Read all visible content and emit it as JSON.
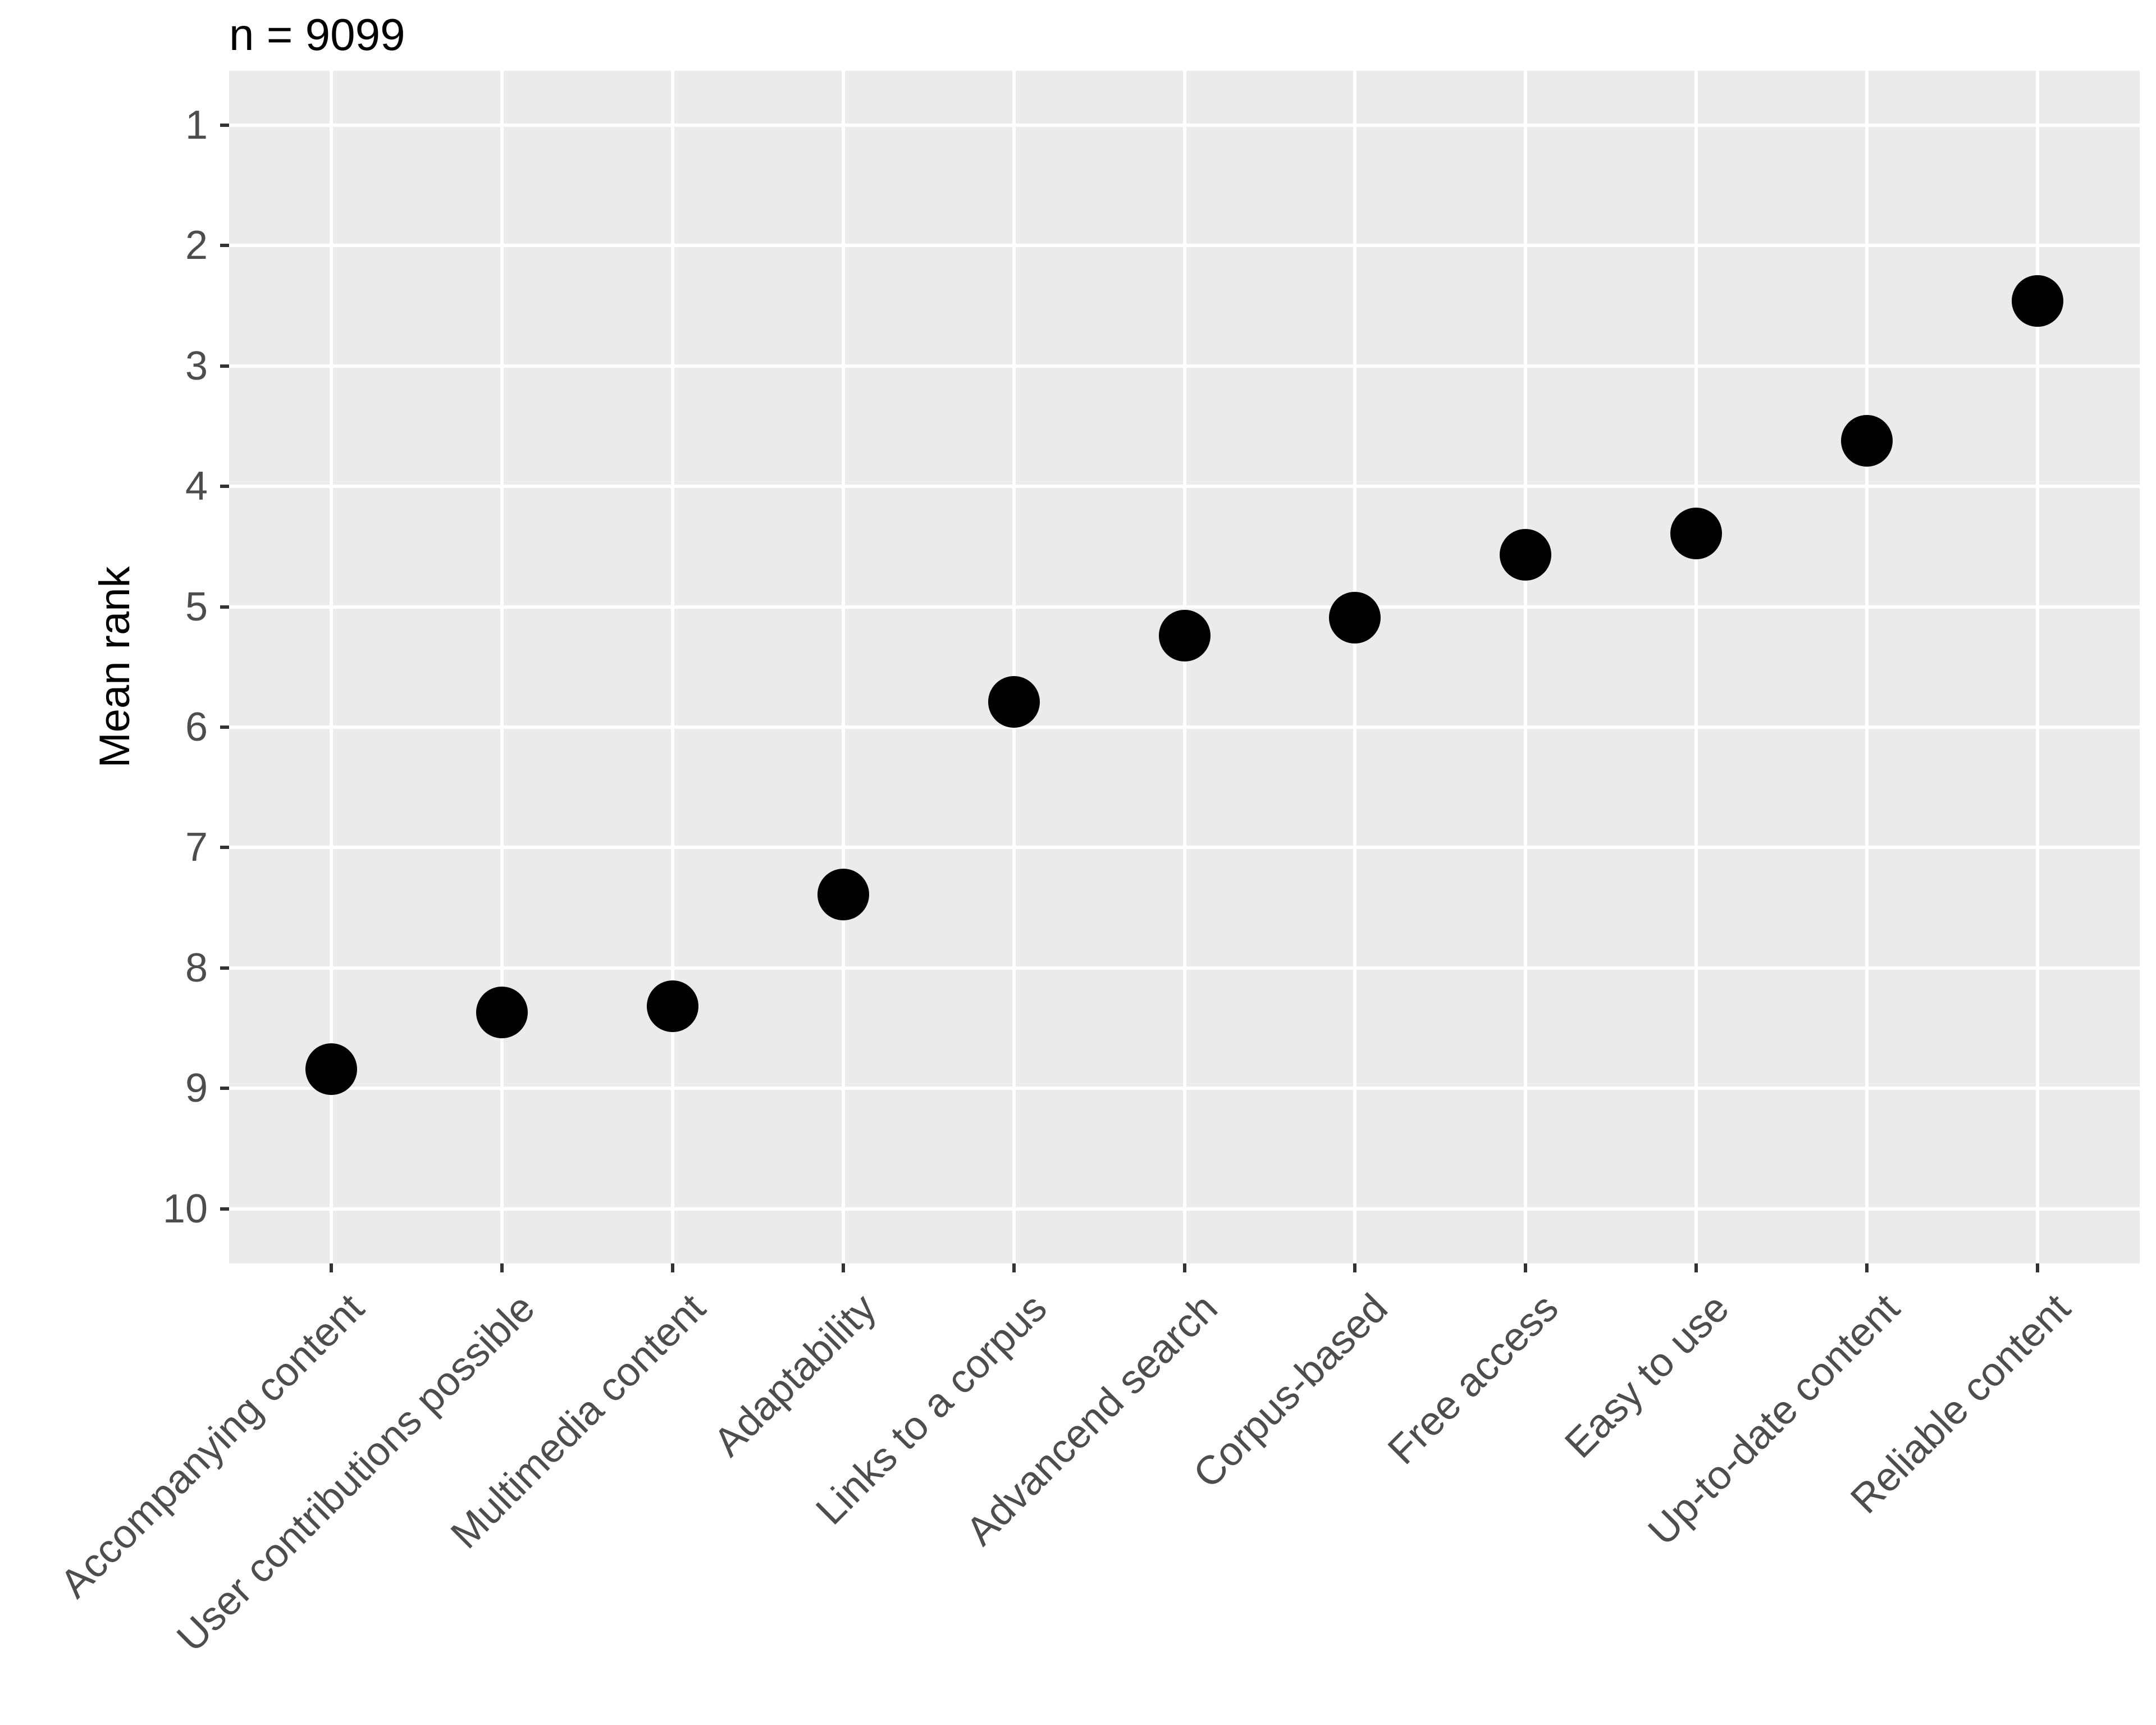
{
  "chart_data": {
    "type": "scatter",
    "title": "n = 9099",
    "ylabel": "Mean rank",
    "xlabel": "",
    "categories": [
      "Accompanying content",
      "User contributions possible",
      "Multimedia content",
      "Adaptability",
      "Links to a corpus",
      "Advancend search",
      "Corpus-based",
      "Free access",
      "Easy to use",
      "Up-to-date content",
      "Reliable content"
    ],
    "values": [
      8.84,
      8.37,
      8.32,
      7.39,
      5.79,
      5.24,
      5.09,
      4.57,
      4.39,
      3.62,
      2.46
    ],
    "y_ticks": [
      "1",
      "2",
      "3",
      "4",
      "5",
      "6",
      "7",
      "8",
      "9",
      "10"
    ],
    "ylim": [
      1,
      10
    ],
    "y_axis_reversed": true,
    "grid": "major-only",
    "legend_position": "none",
    "colors": {
      "panel_background": "#EBEBEB",
      "gridline": "#FFFFFF",
      "point": "#000000",
      "tick_mark": "#333333",
      "tick_label": "#4D4D4D",
      "title": "#000000",
      "axis_title": "#000000"
    }
  }
}
